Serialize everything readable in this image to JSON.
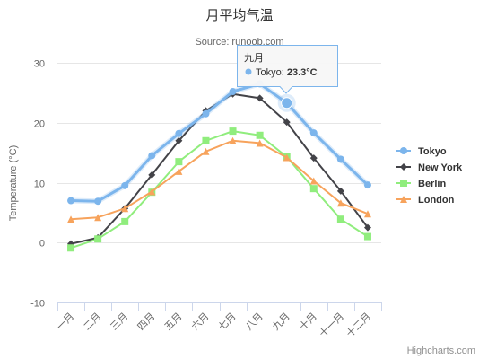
{
  "chart_data": {
    "type": "line",
    "title": "月平均气温",
    "subtitle": "Source: runoob.com",
    "ylabel": "Temperature (°C)",
    "xlabel": "",
    "categories": [
      "一月",
      "二月",
      "三月",
      "四月",
      "五月",
      "六月",
      "七月",
      "八月",
      "九月",
      "十月",
      "十一月",
      "十二月"
    ],
    "yticks": [
      -10,
      0,
      10,
      20,
      30
    ],
    "ylim": [
      -10,
      30
    ],
    "grid": true,
    "legend_position": "right",
    "series": [
      {
        "name": "Tokyo",
        "color": "#7cb5ec",
        "marker": "circle",
        "values": [
          7.0,
          6.9,
          9.5,
          14.5,
          18.2,
          21.5,
          25.2,
          26.5,
          23.3,
          18.3,
          13.9,
          9.6
        ]
      },
      {
        "name": "New York",
        "color": "#434348",
        "marker": "diamond",
        "values": [
          -0.2,
          0.8,
          5.7,
          11.3,
          17.0,
          22.0,
          24.8,
          24.1,
          20.1,
          14.1,
          8.6,
          2.5
        ]
      },
      {
        "name": "Berlin",
        "color": "#90ed7d",
        "marker": "square",
        "values": [
          -0.9,
          0.6,
          3.5,
          8.4,
          13.5,
          17.0,
          18.6,
          17.9,
          14.3,
          9.0,
          3.9,
          1.0
        ]
      },
      {
        "name": "London",
        "color": "#f7a35c",
        "marker": "triangle",
        "values": [
          3.9,
          4.2,
          5.7,
          8.5,
          11.9,
          15.2,
          17.0,
          16.6,
          14.2,
          10.3,
          6.6,
          4.8
        ]
      }
    ],
    "tooltip": {
      "title": "九月",
      "series_name": "Tokyo",
      "separator": ": ",
      "value_text": "23.3°C",
      "series_index": 0,
      "point_index": 8
    },
    "credits": "Highcharts.com"
  }
}
